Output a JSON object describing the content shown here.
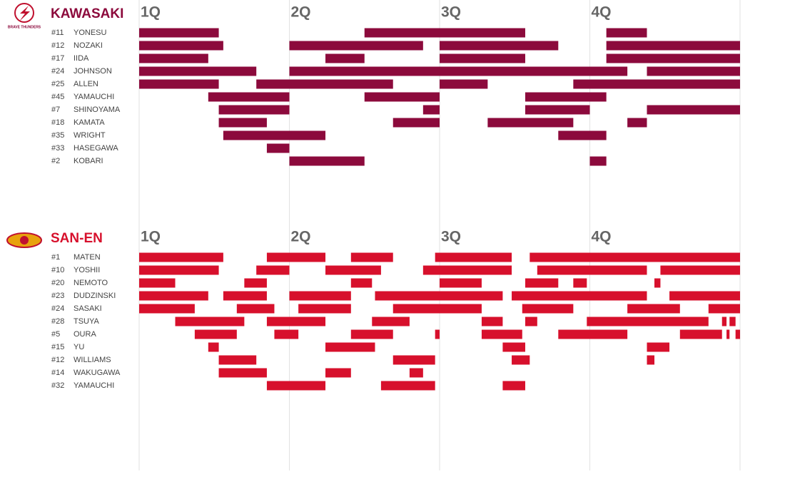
{
  "chart_data": [
    {
      "type": "timeline",
      "title": "KAWASAKI",
      "logo_text": "BRAVE THUNDERS",
      "color": "#8c0a3c",
      "title_color": "#8c0a3c",
      "xlim": [
        0,
        40
      ],
      "xticks": [
        {
          "value": 0,
          "label": "1Q"
        },
        {
          "value": 10,
          "label": "2Q"
        },
        {
          "value": 20,
          "label": "3Q"
        },
        {
          "value": 30,
          "label": "4Q"
        }
      ],
      "grid": true,
      "series": [
        {
          "number": "#11",
          "name": "YONESU",
          "values": [
            [
              0,
              5.3
            ],
            [
              15,
              25.7
            ],
            [
              31.1,
              33.8
            ]
          ]
        },
        {
          "number": "#12",
          "name": "NOZAKI",
          "values": [
            [
              0,
              5.6
            ],
            [
              10,
              18.9
            ],
            [
              20,
              27.9
            ],
            [
              31.1,
              40
            ]
          ]
        },
        {
          "number": "#17",
          "name": "IIDA",
          "values": [
            [
              0,
              4.6
            ],
            [
              12.4,
              15
            ],
            [
              20,
              25.7
            ],
            [
              31.1,
              40
            ]
          ]
        },
        {
          "number": "#24",
          "name": "JOHNSON",
          "values": [
            [
              0,
              7.8
            ],
            [
              10,
              32.5
            ],
            [
              33.8,
              40
            ]
          ]
        },
        {
          "number": "#25",
          "name": "ALLEN",
          "values": [
            [
              0,
              5.3
            ],
            [
              7.8,
              16.9
            ],
            [
              20,
              23.2
            ],
            [
              28.9,
              40
            ]
          ]
        },
        {
          "number": "#45",
          "name": "YAMAUCHI",
          "values": [
            [
              4.6,
              10
            ],
            [
              15,
              20
            ],
            [
              25.7,
              31.1
            ]
          ]
        },
        {
          "number": "#7",
          "name": "SHINOYAMA",
          "values": [
            [
              5.3,
              10
            ],
            [
              18.9,
              20
            ],
            [
              25.7,
              30
            ],
            [
              33.8,
              40
            ]
          ]
        },
        {
          "number": "#18",
          "name": "KAMATA",
          "values": [
            [
              5.3,
              8.5
            ],
            [
              16.9,
              20
            ],
            [
              23.2,
              28.9
            ],
            [
              32.5,
              33.8
            ]
          ]
        },
        {
          "number": "#35",
          "name": "WRIGHT",
          "values": [
            [
              5.6,
              12.4
            ],
            [
              27.9,
              31.1
            ]
          ]
        },
        {
          "number": "#33",
          "name": "HASEGAWA",
          "values": [
            [
              8.5,
              10
            ]
          ]
        },
        {
          "number": "#2",
          "name": "KOBARI",
          "values": [
            [
              10,
              15
            ],
            [
              30,
              31.1
            ]
          ]
        }
      ]
    },
    {
      "type": "timeline",
      "title": "SAN-EN",
      "color": "#d7102c",
      "title_color": "#d7102c",
      "xlim": [
        0,
        40
      ],
      "xticks": [
        {
          "value": 0,
          "label": "1Q"
        },
        {
          "value": 10,
          "label": "2Q"
        },
        {
          "value": 20,
          "label": "3Q"
        },
        {
          "value": 30,
          "label": "4Q"
        }
      ],
      "grid": true,
      "series": [
        {
          "number": "#1",
          "name": "MATEN",
          "values": [
            [
              0,
              5.6
            ],
            [
              8.5,
              12.4
            ],
            [
              14.1,
              16.9
            ],
            [
              19.7,
              24.8
            ],
            [
              26,
              40
            ]
          ]
        },
        {
          "number": "#10",
          "name": "YOSHII",
          "values": [
            [
              0,
              5.3
            ],
            [
              7.8,
              10
            ],
            [
              12.4,
              16.1
            ],
            [
              18.9,
              24.8
            ],
            [
              26.5,
              33.8
            ],
            [
              34.7,
              40
            ]
          ]
        },
        {
          "number": "#20",
          "name": "NEMOTO",
          "values": [
            [
              0,
              2.4
            ],
            [
              7,
              8.5
            ],
            [
              14.1,
              15.5
            ],
            [
              20,
              22.8
            ],
            [
              25.7,
              27.9
            ],
            [
              28.9,
              29.8
            ],
            [
              34.3,
              34.7
            ]
          ]
        },
        {
          "number": "#23",
          "name": "DUDZINSKI",
          "values": [
            [
              0,
              4.6
            ],
            [
              5.6,
              8.5
            ],
            [
              10,
              14.1
            ],
            [
              15.7,
              24.2
            ],
            [
              24.8,
              33.8
            ],
            [
              35.3,
              40
            ]
          ]
        },
        {
          "number": "#24",
          "name": "SASAKI",
          "values": [
            [
              0,
              3.7
            ],
            [
              6.5,
              9
            ],
            [
              10.6,
              14.1
            ],
            [
              16.9,
              22.8
            ],
            [
              25.5,
              28.9
            ],
            [
              32.5,
              36
            ],
            [
              37.9,
              40
            ]
          ]
        },
        {
          "number": "#28",
          "name": "TSUYA",
          "values": [
            [
              2.4,
              7
            ],
            [
              8.5,
              12.4
            ],
            [
              15.5,
              18
            ],
            [
              22.8,
              24.2
            ],
            [
              25.7,
              26.5
            ],
            [
              29.8,
              37.9
            ],
            [
              38.8,
              39.1
            ],
            [
              39.3,
              39.7
            ]
          ]
        },
        {
          "number": "#5",
          "name": "OURA",
          "values": [
            [
              3.7,
              6.5
            ],
            [
              9,
              10.6
            ],
            [
              14.1,
              16.9
            ],
            [
              19.7,
              20
            ],
            [
              22.8,
              25.5
            ],
            [
              27.9,
              32.5
            ],
            [
              36,
              38.8
            ],
            [
              39.1,
              39.3
            ],
            [
              39.7,
              40
            ]
          ]
        },
        {
          "number": "#15",
          "name": "YU",
          "values": [
            [
              4.6,
              5.3
            ],
            [
              12.4,
              15.7
            ],
            [
              24.2,
              25.7
            ],
            [
              33.8,
              35.3
            ]
          ]
        },
        {
          "number": "#12",
          "name": "WILLIAMS",
          "values": [
            [
              5.3,
              7.8
            ],
            [
              16.9,
              19.7
            ],
            [
              24.8,
              26
            ],
            [
              33.8,
              34.3
            ]
          ]
        },
        {
          "number": "#14",
          "name": "WAKUGAWA",
          "values": [
            [
              5.3,
              8.5
            ],
            [
              12.4,
              14.1
            ],
            [
              18,
              18.9
            ]
          ]
        },
        {
          "number": "#32",
          "name": "YAMAUCHI",
          "values": [
            [
              8.5,
              12.4
            ],
            [
              16.1,
              19.7
            ],
            [
              24.2,
              25.7
            ]
          ]
        }
      ]
    }
  ]
}
